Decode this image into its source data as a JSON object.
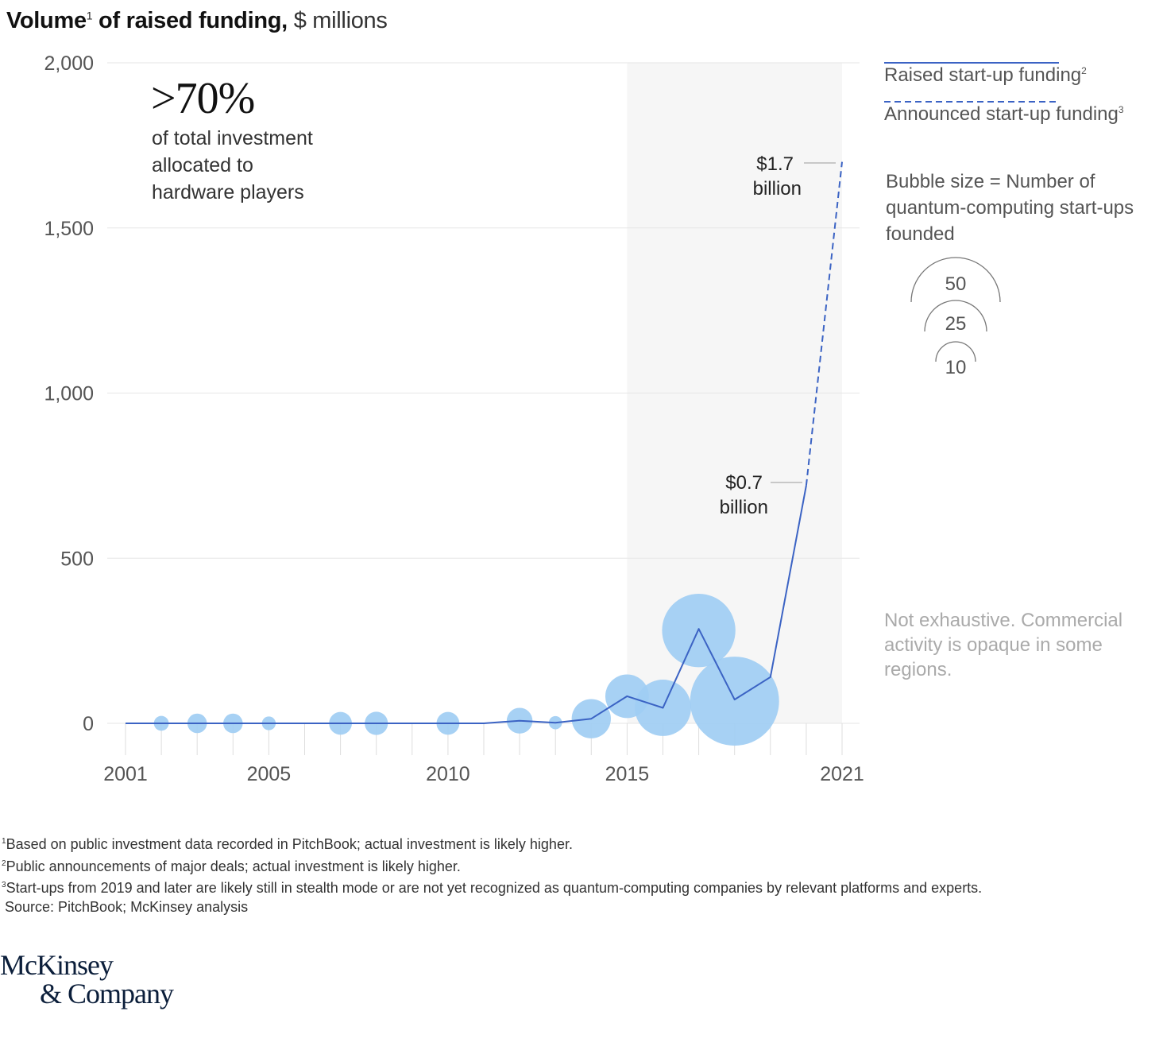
{
  "title": {
    "bold": "Volume",
    "sup": "1",
    "bold2": " of raised funding,",
    "unit": " $ millions"
  },
  "callout": {
    "big": ">70%",
    "line1": "of total investment",
    "line2": "allocated to",
    "line3": "hardware players"
  },
  "legend": {
    "raised": "Raised start-up funding",
    "raised_sup": "2",
    "announced": "Announced start-up funding",
    "announced_sup": "3",
    "bubble_title": "Bubble size = Number of quantum-computing start-ups founded",
    "bubble_sizes": [
      "50",
      "25",
      "10"
    ]
  },
  "note": "Not exhaustive. Commercial activity is opaque in some regions.",
  "annotations": {
    "a17_value": "$1.7",
    "a17_unit": "billion",
    "a07_value": "$0.7",
    "a07_unit": "billion"
  },
  "footnotes": {
    "f1_sup": "1",
    "f1": "Based on public investment data recorded in PitchBook; actual investment is likely higher.",
    "f2_sup": "2",
    "f2": "Public announcements of major deals; actual investment is likely higher.",
    "f3_sup": "3",
    "f3": "Start-ups from 2019 and later are likely still in stealth mode or are not yet recognized as quantum-computing companies by relevant platforms and experts.",
    "source": "Source: PitchBook; McKinsey analysis"
  },
  "logo": {
    "line1": "McKinsey",
    "line2": "& Company"
  },
  "colors": {
    "line": "#3b63c4",
    "bubble": "#9fcdf3",
    "shade": "#f6f6f6",
    "grid": "#e6e6e6"
  },
  "chart_data": {
    "type": "line",
    "ylim": [
      0,
      2000
    ],
    "yticks": [
      0,
      500,
      1000,
      1500,
      2000
    ],
    "ytick_labels": [
      "0",
      "500",
      "1,000",
      "1,500",
      "2,000"
    ],
    "xlim": [
      2001,
      2021
    ],
    "xtick_labels": [
      "2001",
      "2005",
      "2010",
      "2015",
      "2021"
    ],
    "xticks": [
      2001,
      2005,
      2010,
      2015,
      2021
    ],
    "shaded_range": [
      2015,
      2021
    ],
    "series": [
      {
        "name": "Raised start-up funding",
        "style": "solid",
        "points": [
          [
            2001,
            0
          ],
          [
            2002,
            0
          ],
          [
            2003,
            0
          ],
          [
            2004,
            0
          ],
          [
            2005,
            0
          ],
          [
            2006,
            0
          ],
          [
            2007,
            0
          ],
          [
            2008,
            0
          ],
          [
            2009,
            0
          ],
          [
            2010,
            0
          ],
          [
            2011,
            0
          ],
          [
            2012,
            8
          ],
          [
            2013,
            2
          ],
          [
            2014,
            14
          ],
          [
            2015,
            82
          ],
          [
            2016,
            47
          ],
          [
            2017,
            286
          ],
          [
            2018,
            72
          ],
          [
            2019,
            140
          ],
          [
            2020,
            720
          ]
        ]
      },
      {
        "name": "Announced start-up funding",
        "style": "dashed",
        "points": [
          [
            2020,
            720
          ],
          [
            2021,
            1700
          ]
        ]
      }
    ],
    "bubbles": [
      {
        "year": 2002,
        "count": 1.4
      },
      {
        "year": 2003,
        "count": 2.4
      },
      {
        "year": 2004,
        "count": 2.4
      },
      {
        "year": 2005,
        "count": 1.2
      },
      {
        "year": 2007,
        "count": 3.3
      },
      {
        "year": 2008,
        "count": 3.4
      },
      {
        "year": 2010,
        "count": 3.3
      },
      {
        "year": 2012,
        "count": 4.2
      },
      {
        "year": 2013,
        "count": 1.1
      },
      {
        "year": 2014,
        "count": 9.7
      },
      {
        "year": 2015,
        "count": 12
      },
      {
        "year": 2016,
        "count": 20
      },
      {
        "year": 2017,
        "count": 34
      },
      {
        "year": 2018,
        "count": 50
      }
    ]
  }
}
